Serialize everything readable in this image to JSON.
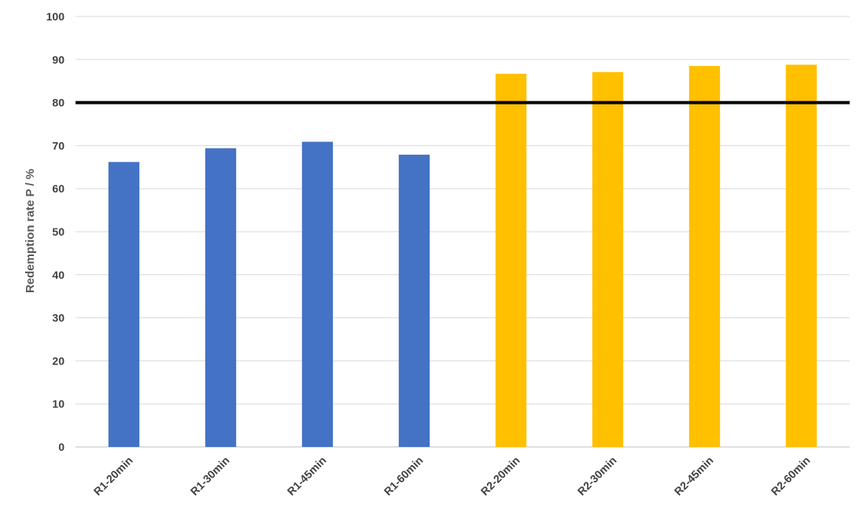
{
  "chart_data": {
    "type": "bar",
    "title": "",
    "xlabel": "",
    "ylabel": "Redemption rate P / %",
    "ylim": [
      0,
      100
    ],
    "ytick_step": 10,
    "grid": true,
    "categories": [
      "R1-20min",
      "R1-30min",
      "R1-45min",
      "R1-60min",
      "R2-20min",
      "R2-30min",
      "R2-45min",
      "R2-60min"
    ],
    "values": [
      66.2,
      69.4,
      70.9,
      67.9,
      86.7,
      87.1,
      88.5,
      88.8
    ],
    "bar_colors": [
      "#4472C4",
      "#4472C4",
      "#4472C4",
      "#4472C4",
      "#FFC000",
      "#FFC000",
      "#FFC000",
      "#FFC000"
    ],
    "reference_line": {
      "y": 80,
      "color": "#000000"
    },
    "colors": {
      "grid": "#D9D9D9",
      "axis": "#BFBFBF",
      "tick_text": "#404040",
      "axis_title": "#595959"
    }
  }
}
